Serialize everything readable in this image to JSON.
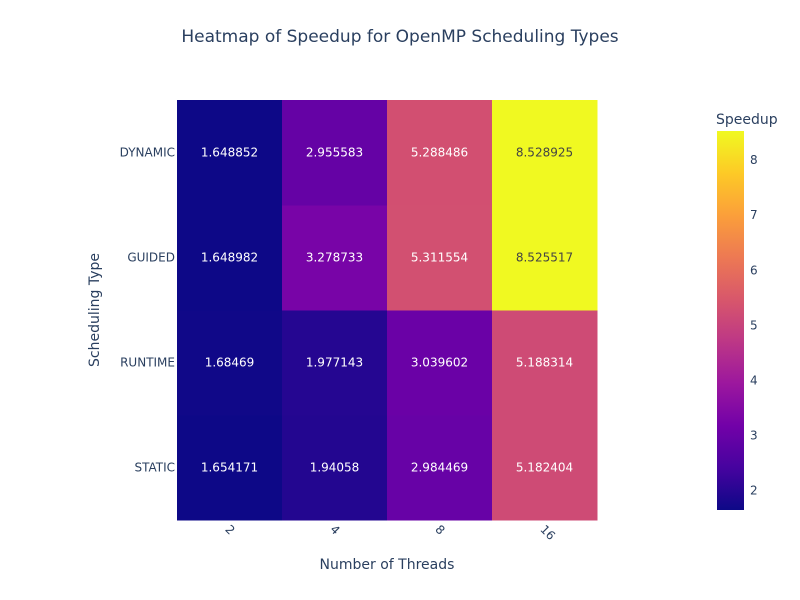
{
  "chart_data": {
    "type": "heatmap",
    "title": "Heatmap of Speedup for OpenMP Scheduling Types",
    "xlabel": "Number of Threads",
    "ylabel": "Scheduling Type",
    "x": [
      "2",
      "4",
      "8",
      "16"
    ],
    "y": [
      "STATIC",
      "RUNTIME",
      "GUIDED",
      "DYNAMIC"
    ],
    "z": [
      [
        1.654171,
        1.94058,
        2.984469,
        5.182404
      ],
      [
        1.68469,
        1.977143,
        3.039602,
        5.188314
      ],
      [
        1.648982,
        3.278733,
        5.311554,
        8.525517
      ],
      [
        1.648852,
        2.955583,
        5.288486,
        8.528925
      ]
    ],
    "z_labels": [
      [
        "1.654171",
        "1.94058",
        "2.984469",
        "5.182404"
      ],
      [
        "1.68469",
        "1.977143",
        "3.039602",
        "5.188314"
      ],
      [
        "1.648982",
        "3.278733",
        "5.311554",
        "8.525517"
      ],
      [
        "1.648852",
        "2.955583",
        "5.288486",
        "8.528925"
      ]
    ],
    "colorscale": "plasma",
    "colorbar": {
      "title": "Speedup",
      "ticks": [
        "2",
        "3",
        "4",
        "5",
        "6",
        "7",
        "8"
      ]
    }
  }
}
